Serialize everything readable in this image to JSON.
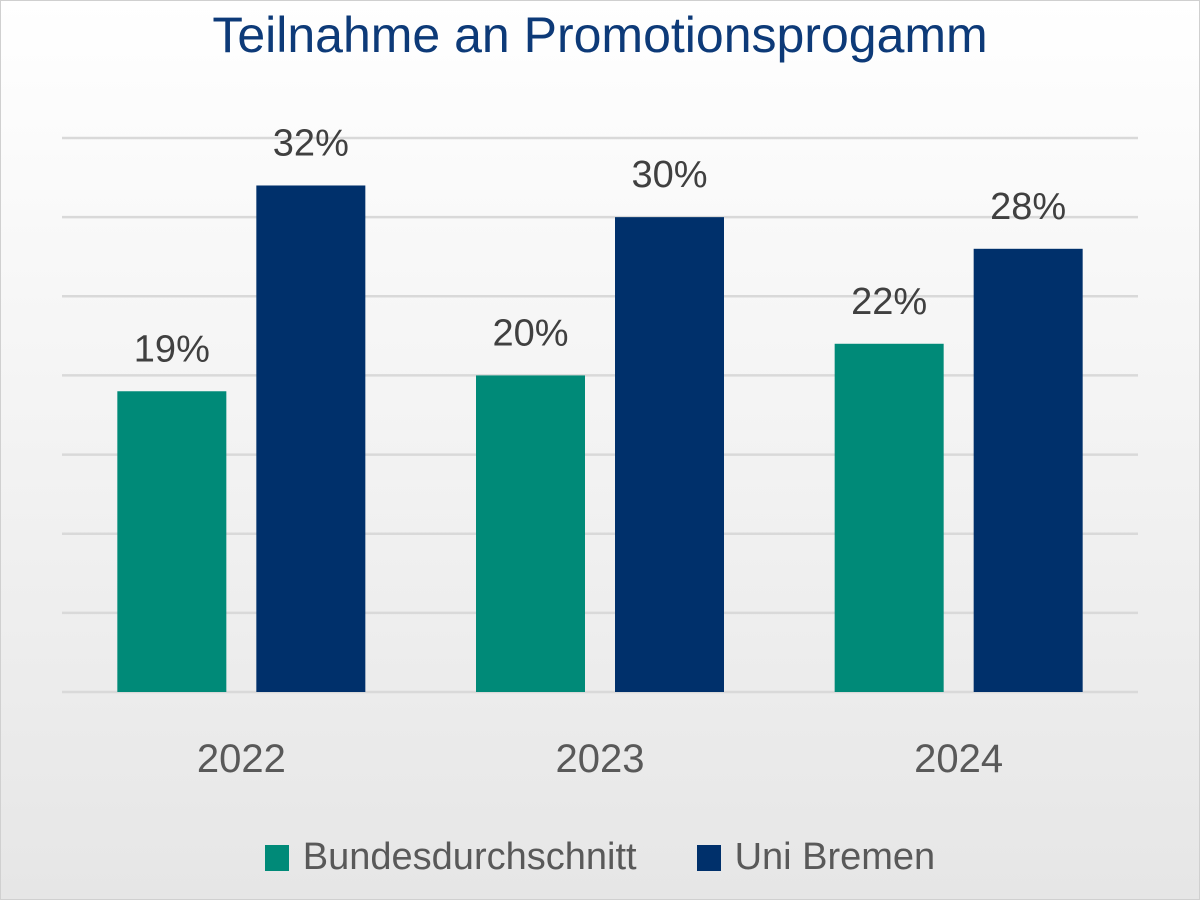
{
  "chart_data": {
    "type": "bar",
    "title": "Teilnahme an Promotionsprogamm",
    "categories": [
      "2022",
      "2023",
      "2024"
    ],
    "series": [
      {
        "name": "Bundesdurchschnitt",
        "values": [
          19,
          20,
          22
        ],
        "color": "#008A78"
      },
      {
        "name": "Uni Bremen",
        "values": [
          32,
          30,
          28
        ],
        "color": "#00306B"
      }
    ],
    "value_format": "%",
    "ylim": [
      0,
      35
    ],
    "ystep": 5,
    "grid": true,
    "y_axis_labels_shown": false,
    "legend": "bottom"
  }
}
